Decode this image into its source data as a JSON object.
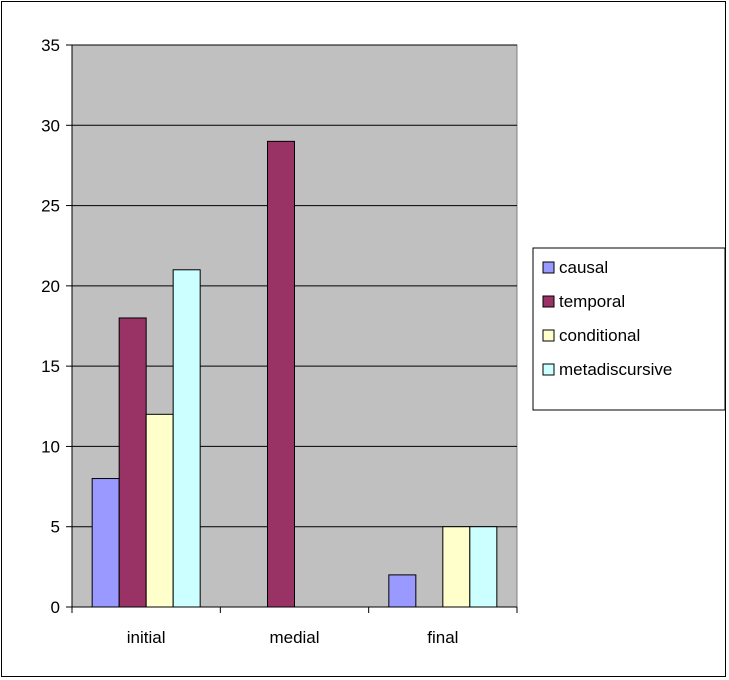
{
  "chart_data": {
    "type": "bar",
    "categories": [
      "initial",
      "medial",
      "final"
    ],
    "series": [
      {
        "name": "causal",
        "values": [
          8,
          0,
          2
        ],
        "color": "#9999FF"
      },
      {
        "name": "temporal",
        "values": [
          18,
          29,
          0
        ],
        "color": "#993366"
      },
      {
        "name": "conditional",
        "values": [
          12,
          0,
          5
        ],
        "color": "#FFFFCC"
      },
      {
        "name": "metadiscursive",
        "values": [
          21,
          0,
          5
        ],
        "color": "#CCFFFF"
      }
    ],
    "ylim": [
      0,
      35
    ],
    "yticks": [
      "0",
      "5",
      "10",
      "15",
      "20",
      "25",
      "30",
      "35"
    ],
    "grid": true,
    "plot_background": "#C0C0C0",
    "legend_position": "right"
  }
}
